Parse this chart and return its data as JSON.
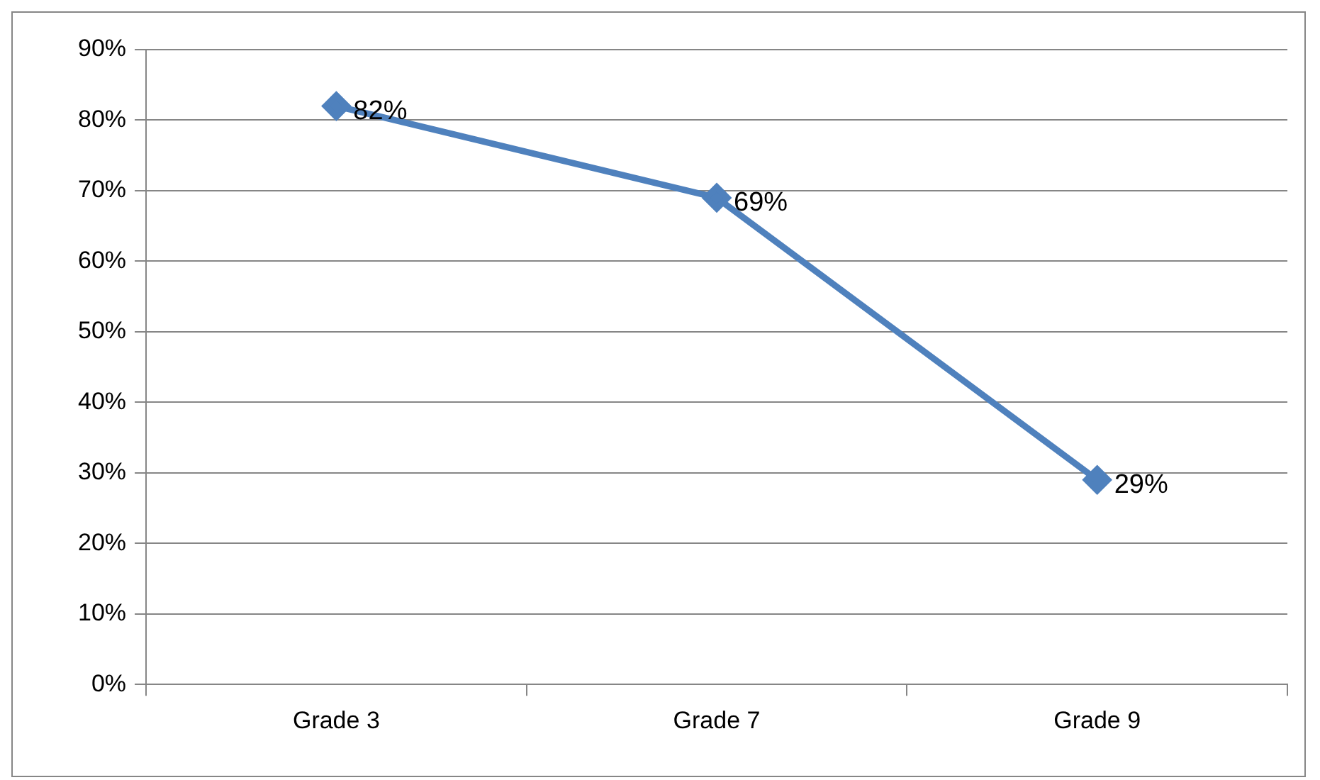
{
  "chart_data": {
    "type": "line",
    "categories": [
      "Grade 3",
      "Grade 7",
      "Grade 9"
    ],
    "series": [
      {
        "color": "#4f81bd",
        "values": [
          82,
          69,
          29
        ],
        "value_labels": [
          "82%",
          "69%",
          "29%"
        ]
      }
    ],
    "ylim": [
      0,
      90
    ],
    "yticks": [
      {
        "value": 0,
        "label": "0%"
      },
      {
        "value": 10,
        "label": "10%"
      },
      {
        "value": 20,
        "label": "20%"
      },
      {
        "value": 30,
        "label": "30%"
      },
      {
        "value": 40,
        "label": "40%"
      },
      {
        "value": 50,
        "label": "50%"
      },
      {
        "value": 60,
        "label": "60%"
      },
      {
        "value": 70,
        "label": "70%"
      },
      {
        "value": 80,
        "label": "80%"
      },
      {
        "value": 90,
        "label": "90%"
      }
    ],
    "grid": "y",
    "marker": "diamond",
    "line_style": "solid",
    "legend": false
  }
}
